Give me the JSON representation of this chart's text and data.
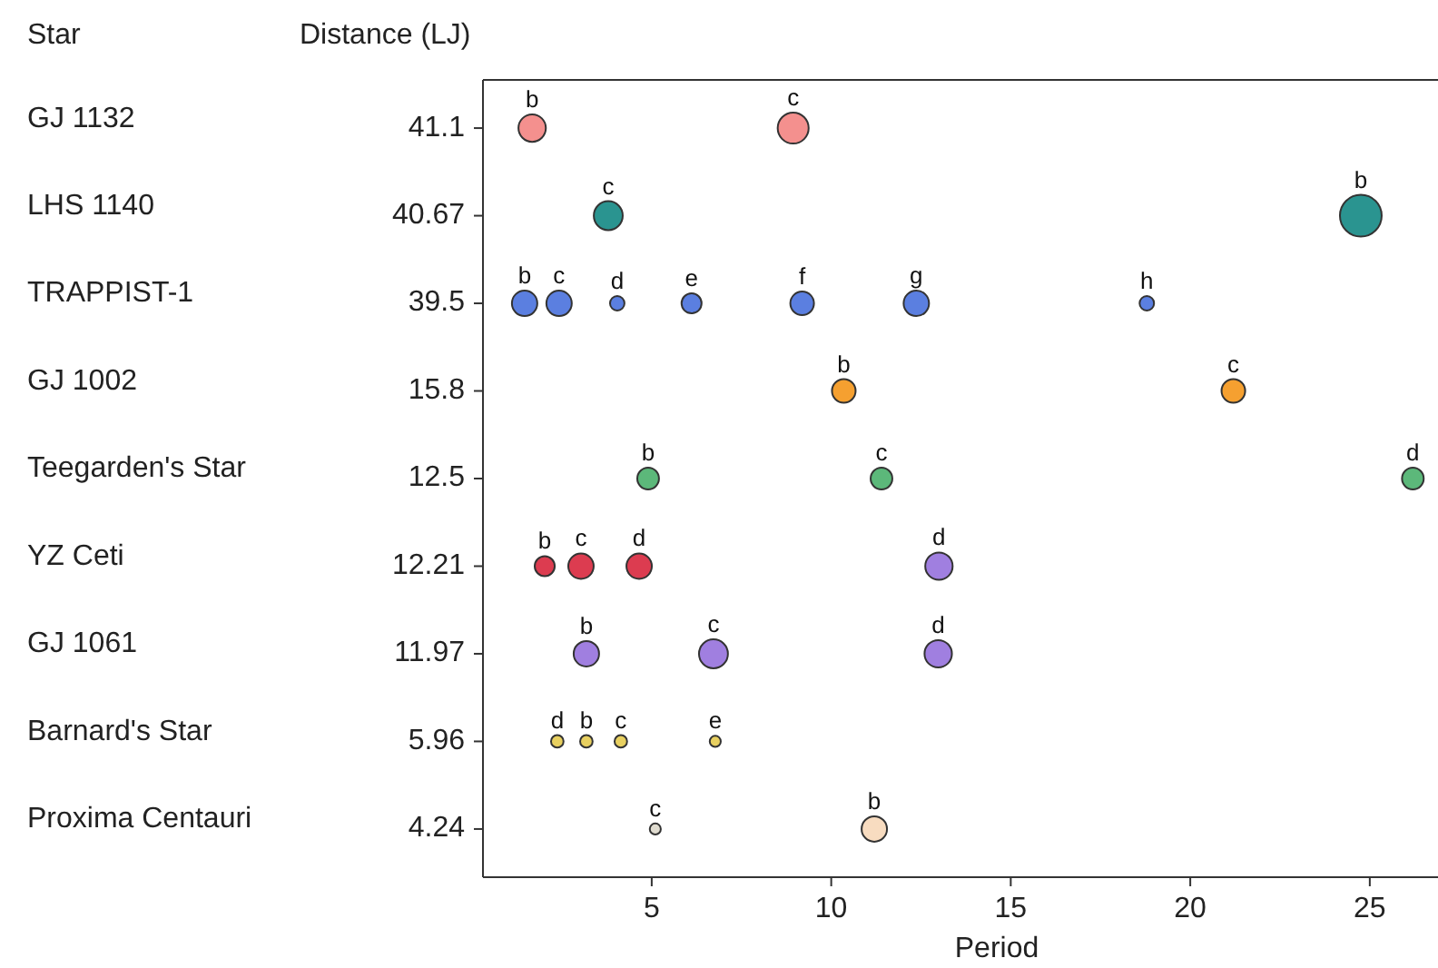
{
  "chart_data": {
    "type": "bubble",
    "orientation": "horizontal",
    "ylabel": "Star",
    "xlabel": "Period",
    "xlim": [
      0.3,
      26.9
    ],
    "xticks": [
      5,
      10,
      15,
      20,
      25
    ],
    "categories": [
      "GJ 1132",
      "LHS 1140",
      "TRAPPIST-1",
      "GJ 1002",
      "Teegarden's Star",
      "YZ Ceti",
      "GJ 1061",
      "Barnard's Star",
      "Proxima Centauri"
    ],
    "annotations": [
      "Distance (LJ)",
      "41.1",
      "40.67",
      "39.5",
      "15.8",
      "12.5",
      "12.21",
      "11.97",
      "5.96",
      "4.24"
    ],
    "series": [
      {
        "color": "#f4908e",
        "x": [
          "GJ 1132",
          "GJ 1132"
        ],
        "values": [
          1.67,
          8.94
        ],
        "sizes": [
          0.43,
          0.55
        ],
        "value_labels": [
          "b",
          "c"
        ]
      },
      {
        "color": "#2a9490",
        "x": [
          "LHS 1140",
          "LHS 1140"
        ],
        "values": [
          3.79,
          24.75
        ],
        "sizes": [
          0.48,
          1
        ],
        "value_labels": [
          "c",
          "b"
        ]
      },
      {
        "color": "#5b7fe0",
        "x": [
          "TRAPPIST-1",
          "TRAPPIST-1",
          "TRAPPIST-1",
          "TRAPPIST-1",
          "TRAPPIST-1",
          "TRAPPIST-1",
          "TRAPPIST-1"
        ],
        "values": [
          1.46,
          2.42,
          4.04,
          6.11,
          9.19,
          12.37,
          18.79
        ],
        "sizes": [
          0.37,
          0.37,
          0.12,
          0.23,
          0.32,
          0.37,
          0.12
        ],
        "value_labels": [
          "b",
          "c",
          "d",
          "e",
          "f",
          "g",
          "h"
        ]
      },
      {
        "color": "#f5a030",
        "x": [
          "GJ 1002",
          "GJ 1002"
        ],
        "values": [
          10.35,
          21.2
        ],
        "sizes": [
          0.32,
          0.32
        ],
        "value_labels": [
          "b",
          "c"
        ]
      },
      {
        "color": "#5cb87a",
        "x": [
          "Teegarden's Star",
          "Teegarden's Star",
          "Teegarden's Star"
        ],
        "values": [
          4.9,
          11.4,
          26.2
        ],
        "sizes": [
          0.27,
          0.27,
          0.27
        ],
        "value_labels": [
          "b",
          "c",
          "d"
        ]
      },
      {
        "colors": [
          "#dc3c50",
          "#dc3c50",
          "#dc3c50",
          "#a07fe0"
        ],
        "x": [
          "YZ Ceti",
          "YZ Ceti",
          "YZ Ceti",
          "YZ Ceti"
        ],
        "values": [
          2.02,
          3.03,
          4.65,
          13.0
        ],
        "sizes": [
          0.23,
          0.37,
          0.37,
          0.43
        ],
        "value_labels": [
          "b",
          "c",
          "d",
          "d"
        ]
      },
      {
        "color": "#a07fe0",
        "x": [
          "GJ 1061",
          "GJ 1061",
          "GJ 1061"
        ],
        "values": [
          3.18,
          6.72,
          12.98
        ],
        "sizes": [
          0.37,
          0.48,
          0.43
        ],
        "value_labels": [
          "b",
          "c",
          "d"
        ]
      },
      {
        "color": "#e8d060",
        "x": [
          "Barnard's Star",
          "Barnard's Star",
          "Barnard's Star",
          "Barnard's Star"
        ],
        "values": [
          2.37,
          3.18,
          4.14,
          6.77
        ],
        "sizes": [
          0.09,
          0.09,
          0.09,
          0.07
        ],
        "value_labels": [
          "d",
          "b",
          "c",
          "e"
        ]
      },
      {
        "colors": [
          "#e0dcd0",
          "#f8dcc0"
        ],
        "x": [
          "Proxima Centauri",
          "Proxima Centauri"
        ],
        "values": [
          5.1,
          11.2
        ],
        "sizes": [
          0.07,
          0.37
        ],
        "value_labels": [
          "c",
          "b"
        ]
      }
    ]
  }
}
